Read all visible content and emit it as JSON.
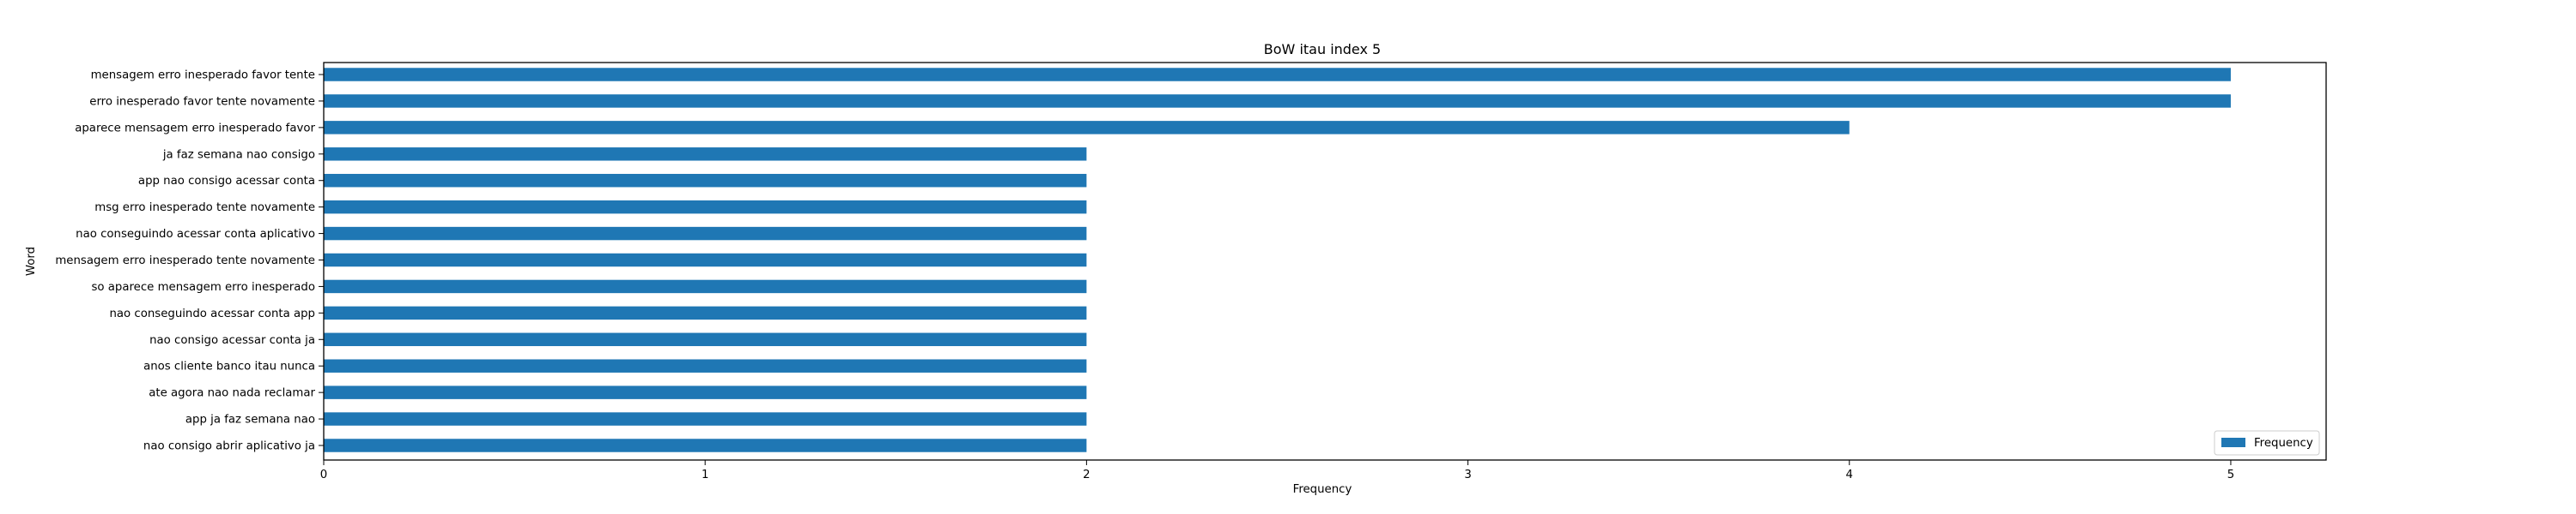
{
  "chart_data": {
    "type": "bar",
    "orientation": "horizontal",
    "title": "BoW itau index 5",
    "xlabel": "Frequency",
    "ylabel": "Word",
    "xlim": [
      0,
      5.25
    ],
    "xticks": [
      "0",
      "1",
      "2",
      "3",
      "4",
      "5"
    ],
    "grid": false,
    "legend_position": "lower-right",
    "bar_color": "#1f77b4",
    "categories": [
      "mensagem erro inesperado favor tente",
      "erro inesperado favor tente novamente",
      "aparece mensagem erro inesperado favor",
      "ja faz semana nao consigo",
      "app nao consigo acessar conta",
      "msg erro inesperado tente novamente",
      "nao conseguindo acessar conta aplicativo",
      "mensagem erro inesperado tente novamente",
      "so aparece mensagem erro inesperado",
      "nao conseguindo acessar conta app",
      "nao consigo acessar conta ja",
      "anos cliente banco itau nunca",
      "ate agora nao nada reclamar",
      "app ja faz semana nao",
      "nao consigo abrir aplicativo ja"
    ],
    "series": [
      {
        "name": "Frequency",
        "values": [
          5,
          5,
          4,
          2,
          2,
          2,
          2,
          2,
          2,
          2,
          2,
          2,
          2,
          2,
          2
        ]
      }
    ]
  }
}
